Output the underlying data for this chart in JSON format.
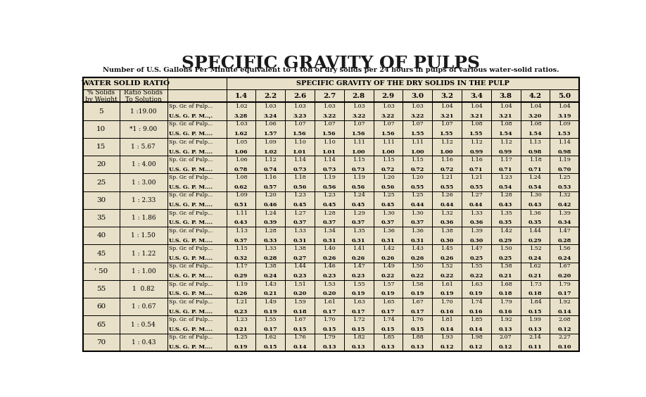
{
  "title": "SPECIFIC GRAVITY OF PULPS",
  "subtitle": "Number of U.S. Gallons Per Minute equivalent to 1 ton of dry solids per 24 hours in pulps of various water-solid ratios.",
  "sg_cols": [
    "1.4",
    "2.2",
    "2.6",
    "2.7",
    "2.8",
    "2.9",
    "3.0",
    "3.2",
    "3.4",
    "3.8",
    "4.2",
    "5.0"
  ],
  "rows": [
    {
      "pct": "5",
      "ratio": "1 :19.00",
      "label1": "Sp. Gr. of Pulp...",
      "label2": "U.S. G. P. M..,.",
      "sg": [
        "1.02",
        "1.03",
        "1.03",
        "1.03",
        "1.03",
        "1.03",
        "1.03",
        "1.04",
        "1.04",
        "1.04",
        "1.04",
        "1.04"
      ],
      "gpm": [
        "3.28",
        "3.24",
        "3.23",
        "3.22",
        "3.22",
        "3.22",
        "3.22",
        "3.21",
        "3.21",
        "3.21",
        "3.20",
        "3.19"
      ]
    },
    {
      "pct": "10",
      "ratio": "*1 : 9.00",
      "label1": "Sp. Gr. of Pulp...",
      "label2": "U.S. G. P. M....",
      "sg": [
        "1.03",
        "1.06",
        "1.07",
        "1.07",
        "1.07",
        "1.07",
        "1.07",
        "1.07",
        "1.08",
        "1.08",
        "1.08",
        "1.09"
      ],
      "gpm": [
        "1.62",
        "1.57",
        "1.56",
        "1.56",
        "1.56",
        "1.56",
        "1.55",
        "1.55",
        "1.55",
        "1.54",
        "1.54",
        "1.53"
      ]
    },
    {
      "pct": "15",
      "ratio": "1 : 5.67",
      "label1": "Sp. Gr. of Pulp...",
      "label2": "U.S. G. P. M....",
      "sg": [
        "1.05",
        "1.09",
        "1.10",
        "1.10",
        "1.11",
        "1.11",
        "1.11",
        "1.12",
        "1.12",
        "1.12",
        "1.13",
        "1.14"
      ],
      "gpm": [
        "1.06",
        "1.02",
        "1.01",
        "1.01",
        "1.00",
        "1.00",
        "1.00",
        "1.00",
        "0.99",
        "0.99",
        "0.98",
        "0.98"
      ]
    },
    {
      "pct": "20",
      "ratio": "1 : 4.00",
      "label1": "Sp. Gr. of Pulp...",
      "label2": "U.S. G. P. M....",
      "sg": [
        "1.06",
        "1.12",
        "1.14",
        "1.14",
        "1.15",
        "1.15",
        "1.15",
        "1.16",
        "1.16",
        "1.17",
        "1.18",
        "1.19"
      ],
      "gpm": [
        "0.78",
        "0.74",
        "0.73",
        "0.73",
        "0.73",
        "0.72",
        "0.72",
        "0.72",
        "0.71",
        "0.71",
        "0.71",
        "0.70"
      ]
    },
    {
      "pct": "25",
      "ratio": "1 : 3.00",
      "label1": "Sp. Gr. of Pulp...",
      "label2": "U.S. G. P. M....",
      "sg": [
        "1.08",
        "1.16",
        "1.18",
        "1.19",
        "1.19",
        "1.20",
        "1.20",
        "1.21",
        "1.21",
        "1.23",
        "1.24",
        "1.25"
      ],
      "gpm": [
        "0.62",
        "0.57",
        "0.56",
        "0.56",
        "0.56",
        "0.56",
        "0.55",
        "0.55",
        "0.55",
        "0.54",
        "0.54",
        "0.53"
      ]
    },
    {
      "pct": "30",
      "ratio": "1 : 2.33",
      "label1": "Sp. Gr. of Pulp...",
      "label2": "U.S. G. P. M....",
      "sg": [
        "1.09",
        "1.20",
        "1.23",
        "1.23",
        "1.24",
        "1.25",
        "1.25",
        "1.26",
        "1.27",
        "1.28",
        "1.30",
        "1.32"
      ],
      "gpm": [
        "0.51",
        "0.46",
        "0.45",
        "0.45",
        "0.45",
        "0.45",
        "0.44",
        "0.44",
        "0.44",
        "0.43",
        "0.43",
        "0.42"
      ]
    },
    {
      "pct": "35",
      "ratio": "1 : 1.86",
      "label1": "Sp. Gr. of Pulp...",
      "label2": "U.S. G. P. M....",
      "sg": [
        "1.11",
        "1.24",
        "1.27",
        "1.28",
        "1.29",
        "1.30",
        "1.30",
        "1.32",
        "1.33",
        "1.35",
        "1.36",
        "1.39"
      ],
      "gpm": [
        "0.43",
        "0.39",
        "0.37",
        "0.37",
        "0.37",
        "0.37",
        "0.37",
        "0.36",
        "0.36",
        "0.35",
        "0.35",
        "0.34"
      ]
    },
    {
      "pct": "40",
      "ratio": "1 : 1.50",
      "label1": "Sp. Gr. of Pulp...",
      "label2": "U.S. G. P. M....",
      "sg": [
        "1.13",
        "1.28",
        "1.33",
        "1.34",
        "1.35",
        "1.36",
        "1.36",
        "1.38",
        "1.39",
        "1.42",
        "1.44",
        "1.47"
      ],
      "gpm": [
        "0.37",
        "0.33",
        "0.31",
        "0.31",
        "0.31",
        "0.31",
        "0.31",
        "0.30",
        "0.30",
        "0.29",
        "0.29",
        "0.28"
      ]
    },
    {
      "pct": "45",
      "ratio": "1 : 1.22",
      "label1": "Sp. Gr. of Pulp...",
      "label2": "U.S. G. P. M....",
      "sg": [
        "1.15",
        "1.33",
        "1.38",
        "1.40",
        "1.41",
        "1.42",
        "1.43",
        "1.45",
        "1.47",
        "1.50",
        "1.52",
        "1.56"
      ],
      "gpm": [
        "0.32",
        "0.28",
        "0.27",
        "0.26",
        "0.26",
        "0.26",
        "0.26",
        "0.26",
        "0.25",
        "0.25",
        "0.24",
        "0.24"
      ]
    },
    {
      "pct": "' 50",
      "ratio": "1 : 1.00",
      "label1": "Sp. Gr. of Pulp...",
      "label2": "U.S. G. P. M....",
      "sg": [
        "1.17",
        "1.38",
        "1.44",
        "1.46",
        "1.47",
        "1.49",
        "1.50",
        "1.52",
        "1.55",
        "1.58",
        "1.62",
        "1.67"
      ],
      "gpm": [
        "0.29",
        "0.24",
        "0.23",
        "0.23",
        "0.23",
        "0.22",
        "0.22",
        "0.22",
        "0.22",
        "0.21",
        "0.21",
        "0.20"
      ]
    },
    {
      "pct": "55",
      "ratio": "1  0.82",
      "label1": "Sp. Gr. of Pulp...",
      "label2": "U.S. G. P. M....",
      "sg": [
        "1.19",
        "1.43",
        "1.51",
        "1.53",
        "1.55",
        "1.57",
        "1.58",
        "1.61",
        "1.63",
        "1.68",
        "1.73",
        "1.79"
      ],
      "gpm": [
        "0.26",
        "0.21",
        "0.20",
        "0.20",
        "0.19",
        "0.19",
        "0.19",
        "0.19",
        "0.19",
        "0.18",
        "0.18",
        "0.17"
      ]
    },
    {
      "pct": "60",
      "ratio": "1 : 0.67",
      "label1": "Sp. Gr. of Pulp...",
      "label2": "U.S. G. P. M....",
      "sg": [
        "1.21",
        "1.49",
        "1.59",
        "1.61",
        "1.63",
        "1.65",
        "1.67",
        "1.70",
        "1.74",
        "1.79",
        "1.84",
        "1.92"
      ],
      "gpm": [
        "0.23",
        "0.19",
        "0.18",
        "0.17",
        "0.17",
        "0.17",
        "0.17",
        "0.16",
        "0.16",
        "0.16",
        "0.15",
        "0.14"
      ]
    },
    {
      "pct": "65",
      "ratio": "1 : 0.54",
      "label1": "Sp. Gr. of Pulp...",
      "label2": "U.S. G. P. M....",
      "sg": [
        "1.23",
        "1.55",
        "1.67",
        "1.70",
        "1.72",
        "1.74",
        "1.76",
        "1.81",
        "1.85",
        "1.92",
        "1.99",
        "2.08"
      ],
      "gpm": [
        "0.21",
        "0.17",
        "0.15",
        "0.15",
        "0.15",
        "0.15",
        "0.15",
        "0.14",
        "0.14",
        "0.13",
        "0.13",
        "0.12"
      ]
    },
    {
      "pct": "70",
      "ratio": "1 : 0.43",
      "label1": "Sp. Gr. of Pulp...",
      "label2": "U.S. G. P. M....",
      "sg": [
        "1.25",
        "1.62",
        "1.76",
        "1.79",
        "1.82",
        "1.85",
        "1.88",
        "1.93",
        "1.98",
        "2.07",
        "2.14",
        "2.27"
      ],
      "gpm": [
        "0.19",
        "0.15",
        "0.14",
        "0.13",
        "0.13",
        "0.13",
        "0.13",
        "0.12",
        "0.12",
        "0.12",
        "0.11",
        "0.10"
      ]
    }
  ],
  "page_bg": "#f5f0e0",
  "table_bg": "#e8e0c8",
  "text_color": "#000000",
  "title_fontsize": 18,
  "subtitle_fontsize": 7,
  "header_fontsize": 7,
  "data_fontsize": 6,
  "bold_data_fontsize": 6.5
}
